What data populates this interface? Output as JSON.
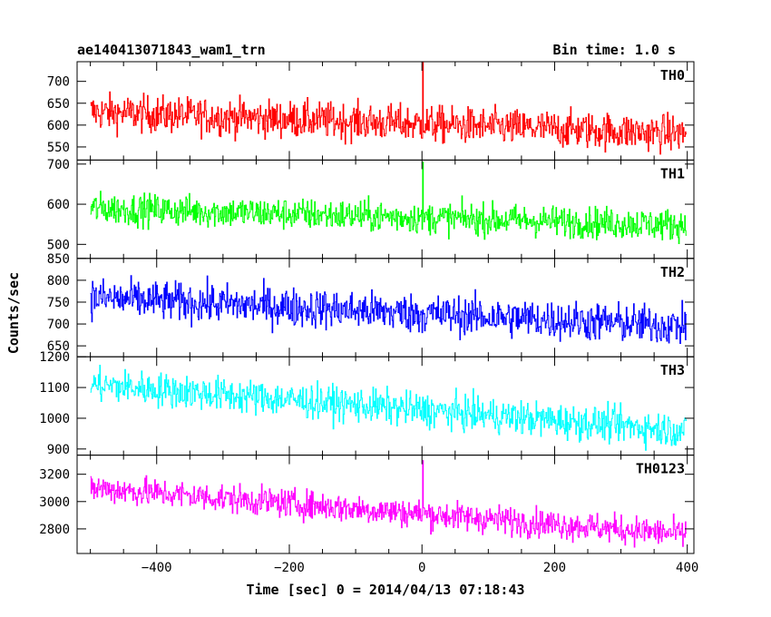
{
  "chart_data": {
    "type": "line",
    "title_left": "ae140413071843_wam1_trn",
    "title_right": "Bin time: 1.0 s",
    "xlabel": "Time [sec] 0 = 2014/04/13 07:18:43",
    "ylabel": "Counts/sec",
    "xlim": [
      -520,
      410
    ],
    "x_ticks": [
      -400,
      -200,
      0,
      200,
      400
    ],
    "x_step": 1,
    "x_start": -500,
    "x_end": 398,
    "panels": [
      {
        "name": "TH0",
        "color": "#ff0000",
        "ylim": [
          520,
          745
        ],
        "y_ticks": [
          550,
          600,
          650,
          700
        ],
        "y_tick_labels": [
          "550",
          "600",
          "650",
          "700"
        ],
        "mean_start": 630,
        "mean_end": 580,
        "noise": 30,
        "spike": {
          "x": 1,
          "y": 745
        }
      },
      {
        "name": "TH1",
        "color": "#00ff00",
        "ylim": [
          465,
          710
        ],
        "y_ticks": [
          500,
          600,
          700
        ],
        "y_tick_labels": [
          "500",
          "600",
          "700"
        ],
        "mean_start": 590,
        "mean_end": 548,
        "noise": 28,
        "spike": {
          "x": 1,
          "y": 705
        }
      },
      {
        "name": "TH2",
        "color": "#0000ff",
        "ylim": [
          625,
          850
        ],
        "y_ticks": [
          650,
          700,
          750,
          800,
          850
        ],
        "y_tick_labels": [
          "650",
          "700",
          "750",
          "800",
          "850"
        ],
        "mean_start": 760,
        "mean_end": 695,
        "noise": 32,
        "spike": null
      },
      {
        "name": "TH3",
        "color": "#00ffff",
        "ylim": [
          880,
          1200
        ],
        "y_ticks": [
          900,
          1000,
          1100,
          1200
        ],
        "y_tick_labels": [
          "900",
          "1000",
          "1100",
          "1200"
        ],
        "mean_start": 1110,
        "mean_end": 960,
        "noise": 40,
        "spike": null
      },
      {
        "name": "TH0123",
        "color": "#ff00ff",
        "ylim": [
          2620,
          3340
        ],
        "y_ticks": [
          2800,
          3000,
          3200
        ],
        "y_tick_labels": [
          "2800",
          "3000",
          "3200"
        ],
        "mean_start": 3100,
        "mean_end": 2760,
        "noise": 75,
        "spike": {
          "x": 1,
          "y": 3300
        }
      }
    ]
  }
}
